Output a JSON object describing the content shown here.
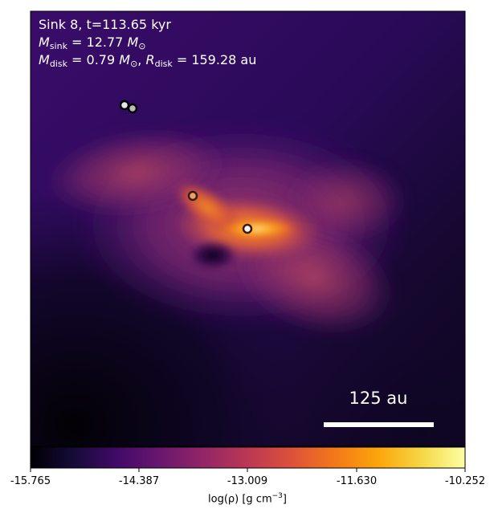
{
  "info": {
    "line1": "Sink 8, t=113.65 kyr",
    "msink_value": "= 12.77",
    "mdisk_value": "= 0.79",
    "rdisk_value": "= 159.28 au"
  },
  "scale_bar": {
    "label": "125 au"
  },
  "colorbar": {
    "ticks": [
      "-15.765",
      "-14.387",
      "-13.009",
      "-11.630",
      "-10.252"
    ],
    "label": "log(ρ) [g cm",
    "label_exp": "−3",
    "label_end": "]",
    "range": [
      -15.765,
      -10.252
    ],
    "colormap": "inferno"
  },
  "sinks": [
    {
      "name": "sink-a",
      "fill": "#e8e8e8"
    },
    {
      "name": "sink-b",
      "fill": "#bcbcbc"
    },
    {
      "name": "sink-c",
      "fill": "#f0a060"
    },
    {
      "name": "sink-d",
      "fill": "#f4f4f4"
    }
  ],
  "colors": {
    "background_dark": "#2d0a5e",
    "disk_bright": "#fcb52a",
    "disk_core": "#ffe69a"
  }
}
